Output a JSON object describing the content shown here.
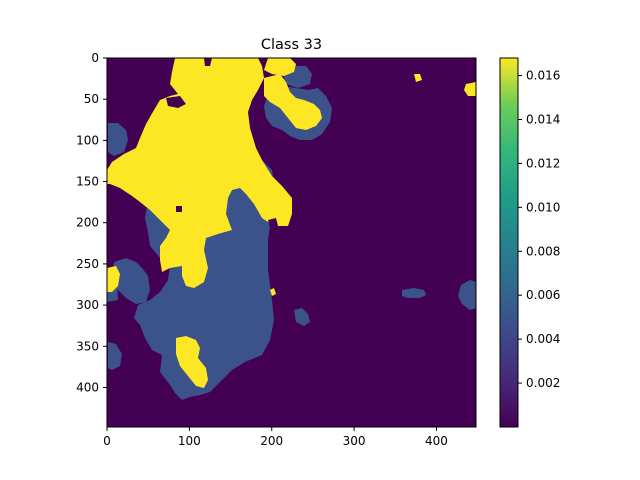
{
  "chart_data": {
    "type": "heatmap",
    "title": "Class 33",
    "xlabel": "",
    "ylabel": "",
    "grid": false,
    "xlim": [
      0,
      448
    ],
    "ylim": [
      448,
      0
    ],
    "x_ticks": [
      "0",
      "100",
      "200",
      "300",
      "400"
    ],
    "y_ticks": [
      "0",
      "50",
      "100",
      "150",
      "200",
      "250",
      "300",
      "350",
      "400"
    ],
    "colormap": "viridis",
    "colorbar_range": [
      0.0,
      0.0168
    ],
    "colorbar_ticks": [
      "0.002",
      "0.004",
      "0.006",
      "0.008",
      "0.010",
      "0.012",
      "0.014",
      "0.016"
    ],
    "levels": {
      "background": 0.0,
      "medium": 0.0045,
      "high": 0.0168
    },
    "colors": {
      "background": "#440154",
      "medium": "#3b528b",
      "high": "#fde725"
    }
  }
}
